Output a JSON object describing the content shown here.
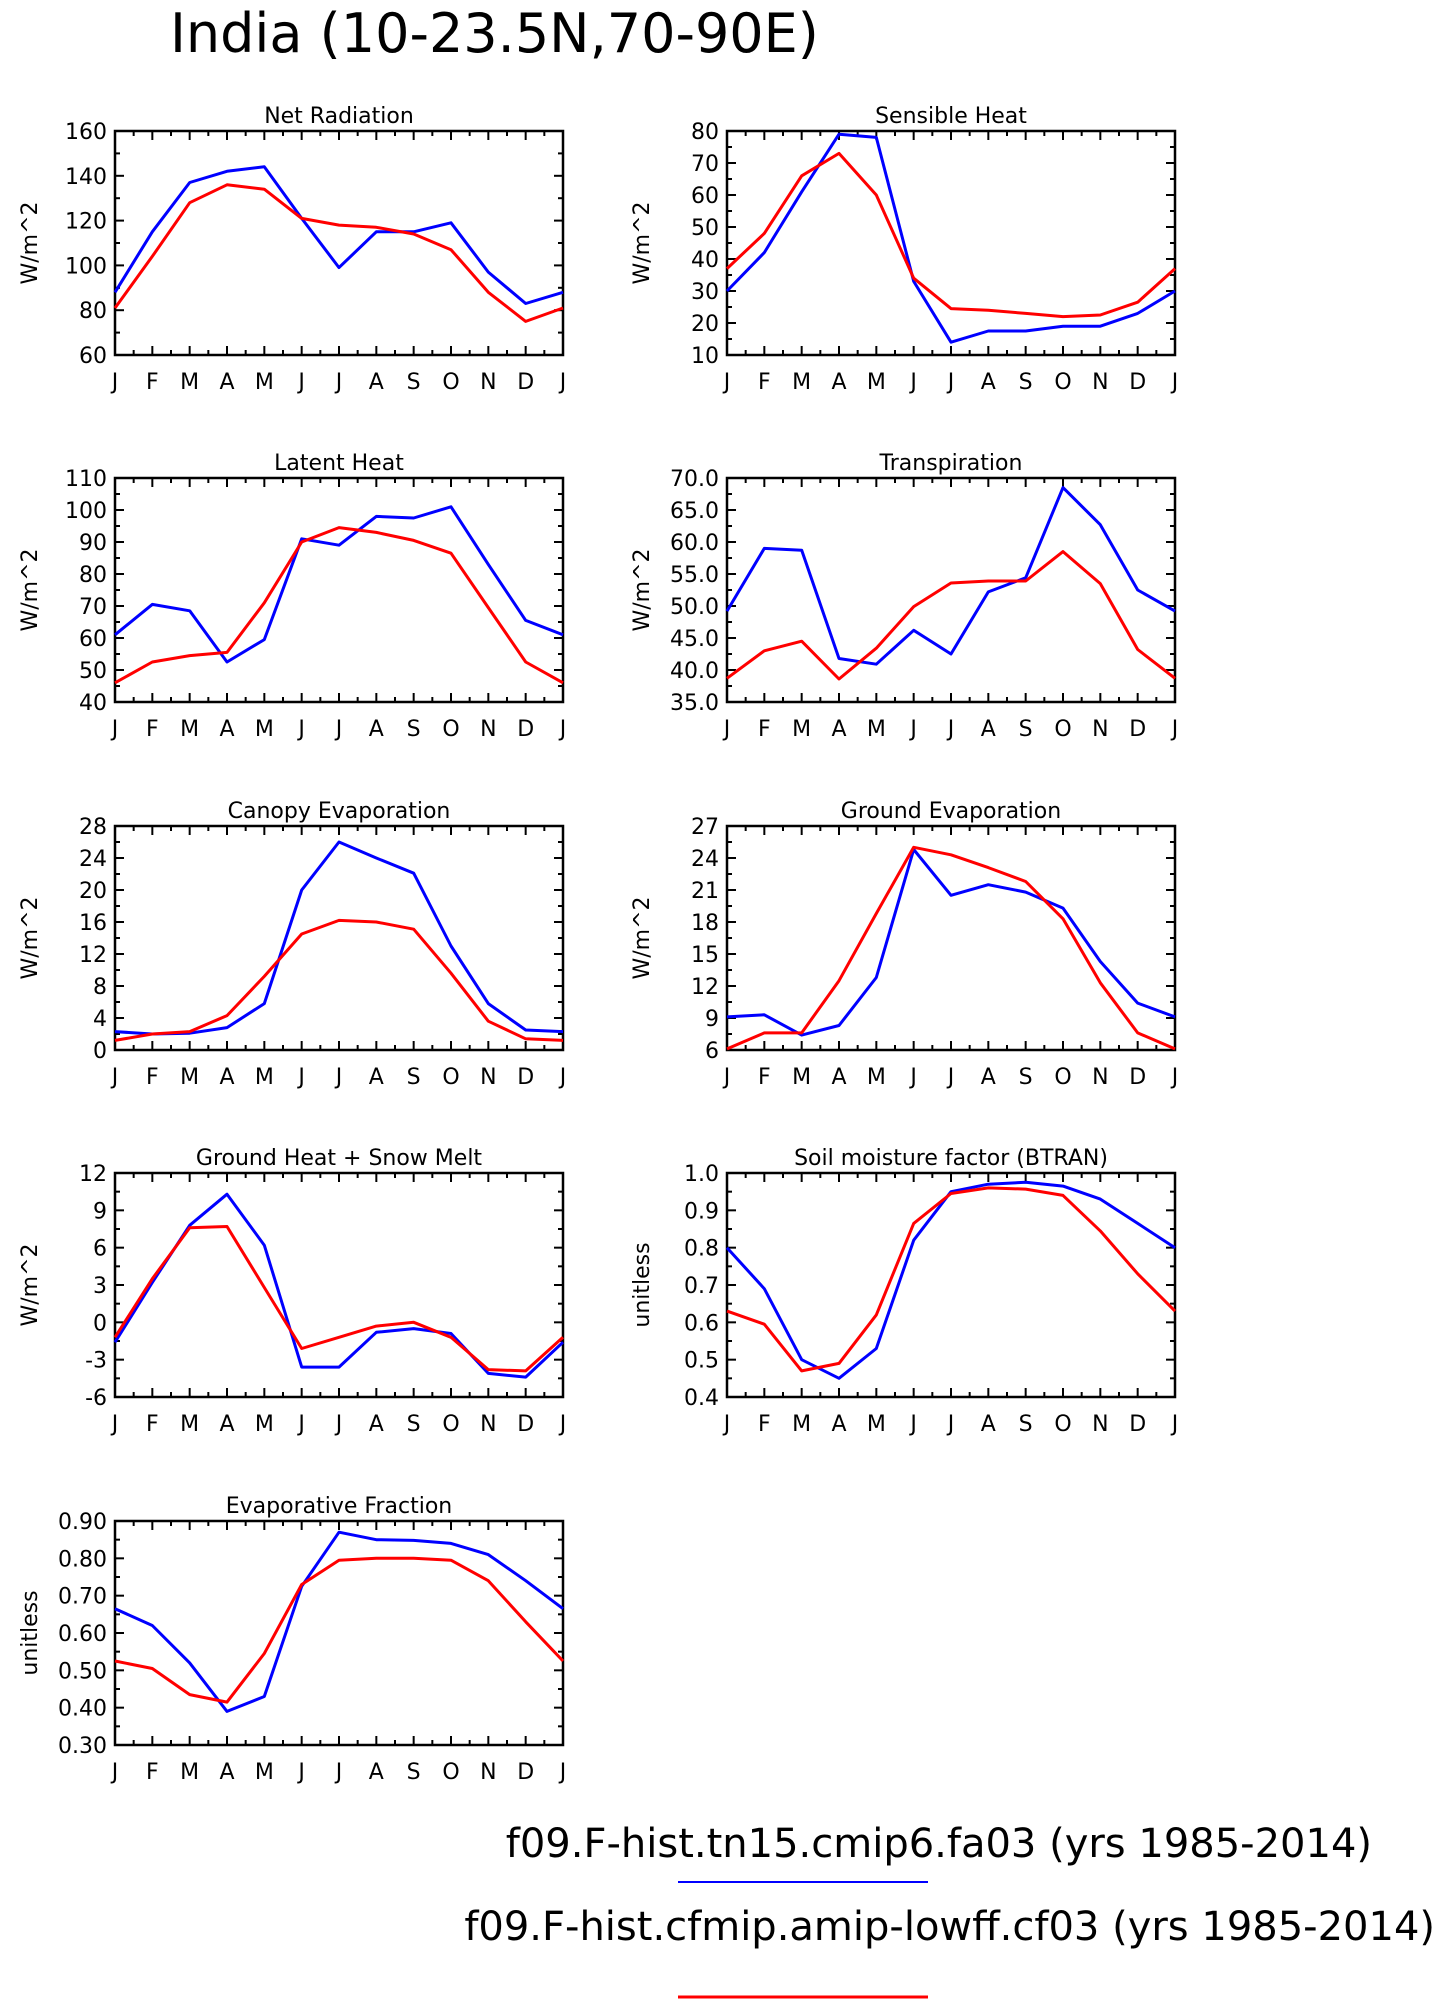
{
  "title": "India (10-23.5N,70-90E)",
  "colors": {
    "model_a": "#0000ff",
    "model_b": "#ff0000"
  },
  "legend": [
    {
      "label": "f09.F-hist.tn15.cmip6.fa03 (yrs 1985-2014)",
      "color": "#0000ff"
    },
    {
      "label": "f09.F-hist.cfmip.amip-lowff.cf03 (yrs 1985-2014)",
      "color": "#ff0000"
    }
  ],
  "chart_data": [
    {
      "type": "line",
      "title": "Net Radiation",
      "ylabel": "W/m^2",
      "categories": [
        "J",
        "F",
        "M",
        "A",
        "M",
        "J",
        "J",
        "A",
        "S",
        "O",
        "N",
        "D",
        "J"
      ],
      "ylim": [
        60,
        160
      ],
      "yticks": [
        "60",
        "80",
        "100",
        "120",
        "140",
        "160"
      ],
      "series": [
        {
          "color": "#0000ff",
          "values": [
            88,
            115,
            137,
            142,
            144,
            121,
            99,
            115,
            115,
            119,
            97,
            83,
            88
          ]
        },
        {
          "color": "#ff0000",
          "values": [
            81,
            104,
            128,
            136,
            134,
            121,
            118,
            117,
            114,
            107,
            88,
            75,
            81
          ]
        }
      ]
    },
    {
      "type": "line",
      "title": "Sensible Heat",
      "ylabel": "W/m^2",
      "categories": [
        "J",
        "F",
        "M",
        "A",
        "M",
        "J",
        "J",
        "A",
        "S",
        "O",
        "N",
        "D",
        "J"
      ],
      "ylim": [
        10,
        80
      ],
      "yticks": [
        "10",
        "20",
        "30",
        "40",
        "50",
        "60",
        "70",
        "80"
      ],
      "series": [
        {
          "color": "#0000ff",
          "values": [
            30,
            42,
            61,
            79,
            78,
            33,
            14,
            17.5,
            17.5,
            19,
            19,
            23,
            30
          ]
        },
        {
          "color": "#ff0000",
          "values": [
            37,
            48,
            66,
            73,
            60,
            34,
            24.5,
            24,
            23,
            22,
            22.5,
            26.5,
            37
          ]
        }
      ]
    },
    {
      "type": "line",
      "title": "Latent Heat",
      "ylabel": "W/m^2",
      "categories": [
        "J",
        "F",
        "M",
        "A",
        "M",
        "J",
        "J",
        "A",
        "S",
        "O",
        "N",
        "D",
        "J"
      ],
      "ylim": [
        40,
        110
      ],
      "yticks": [
        "40",
        "50",
        "60",
        "70",
        "80",
        "90",
        "100",
        "110"
      ],
      "series": [
        {
          "color": "#0000ff",
          "values": [
            61,
            70.5,
            68.5,
            52.5,
            59.5,
            91,
            89,
            98,
            97.5,
            101,
            83,
            65.5,
            61
          ]
        },
        {
          "color": "#ff0000",
          "values": [
            46,
            52.5,
            54.5,
            55.5,
            71,
            90,
            94.5,
            93,
            90.5,
            86.5,
            69.5,
            52.5,
            46
          ]
        }
      ]
    },
    {
      "type": "line",
      "title": "Transpiration",
      "ylabel": "W/m^2",
      "categories": [
        "J",
        "F",
        "M",
        "A",
        "M",
        "J",
        "J",
        "A",
        "S",
        "O",
        "N",
        "D",
        "J"
      ],
      "ylim": [
        35,
        70
      ],
      "yticks": [
        "35.0",
        "40.0",
        "45.0",
        "50.0",
        "55.0",
        "60.0",
        "65.0",
        "70.0"
      ],
      "series": [
        {
          "color": "#0000ff",
          "values": [
            49.2,
            59,
            58.7,
            41.8,
            40.9,
            46.2,
            42.5,
            52.2,
            54.4,
            68.5,
            62.7,
            52.5,
            49.2
          ]
        },
        {
          "color": "#ff0000",
          "values": [
            38.7,
            43,
            44.5,
            38.6,
            43.4,
            49.9,
            53.6,
            53.9,
            53.9,
            58.5,
            53.5,
            43.2,
            38.7
          ]
        }
      ]
    },
    {
      "type": "line",
      "title": "Canopy Evaporation",
      "ylabel": "W/m^2",
      "categories": [
        "J",
        "F",
        "M",
        "A",
        "M",
        "J",
        "J",
        "A",
        "S",
        "O",
        "N",
        "D",
        "J"
      ],
      "ylim": [
        0,
        28
      ],
      "yticks": [
        "0",
        "4",
        "8",
        "12",
        "16",
        "20",
        "24",
        "28"
      ],
      "series": [
        {
          "color": "#0000ff",
          "values": [
            2.3,
            2,
            2.1,
            2.8,
            5.8,
            20,
            26,
            24,
            22.1,
            13,
            5.8,
            2.5,
            2.3
          ]
        },
        {
          "color": "#ff0000",
          "values": [
            1.2,
            2,
            2.3,
            4.3,
            9.2,
            14.5,
            16.2,
            16,
            15.1,
            9.6,
            3.6,
            1.4,
            1.2
          ]
        }
      ]
    },
    {
      "type": "line",
      "title": "Ground Evaporation",
      "ylabel": "W/m^2",
      "categories": [
        "J",
        "F",
        "M",
        "A",
        "M",
        "J",
        "J",
        "A",
        "S",
        "O",
        "N",
        "D",
        "J"
      ],
      "ylim": [
        6,
        27
      ],
      "yticks": [
        "6",
        "9",
        "12",
        "15",
        "18",
        "21",
        "24",
        "27"
      ],
      "series": [
        {
          "color": "#0000ff",
          "values": [
            9.1,
            9.3,
            7.4,
            8.3,
            12.8,
            24.8,
            20.5,
            21.5,
            20.8,
            19.3,
            14.3,
            10.4,
            9.1
          ]
        },
        {
          "color": "#ff0000",
          "values": [
            6.1,
            7.6,
            7.6,
            12.5,
            18.8,
            25,
            24.3,
            23.1,
            21.8,
            18.3,
            12.3,
            7.6,
            6.1
          ]
        }
      ]
    },
    {
      "type": "line",
      "title": "Ground Heat + Snow Melt",
      "ylabel": "W/m^2",
      "categories": [
        "J",
        "F",
        "M",
        "A",
        "M",
        "J",
        "J",
        "A",
        "S",
        "O",
        "N",
        "D",
        "J"
      ],
      "ylim": [
        -6,
        12
      ],
      "yticks": [
        "-6",
        "-3",
        "0",
        "3",
        "6",
        "9",
        "12"
      ],
      "series": [
        {
          "color": "#0000ff",
          "values": [
            -1.6,
            3.2,
            7.8,
            10.3,
            6.2,
            -3.6,
            -3.6,
            -0.8,
            -0.5,
            -0.9,
            -4.1,
            -4.4,
            -1.6
          ]
        },
        {
          "color": "#ff0000",
          "values": [
            -1.2,
            3.5,
            7.6,
            7.7,
            2.8,
            -2.1,
            -1.2,
            -0.3,
            0,
            -1.2,
            -3.8,
            -3.9,
            -1.2
          ]
        }
      ]
    },
    {
      "type": "line",
      "title": "Soil moisture factor (BTRAN)",
      "ylabel": "unitless",
      "categories": [
        "J",
        "F",
        "M",
        "A",
        "M",
        "J",
        "J",
        "A",
        "S",
        "O",
        "N",
        "D",
        "J"
      ],
      "ylim": [
        0.4,
        1.0
      ],
      "yticks": [
        "0.4",
        "0.5",
        "0.6",
        "0.7",
        "0.8",
        "0.9",
        "1.0"
      ],
      "series": [
        {
          "color": "#0000ff",
          "values": [
            0.8,
            0.69,
            0.5,
            0.45,
            0.53,
            0.82,
            0.95,
            0.97,
            0.975,
            0.965,
            0.93,
            0.865,
            0.8
          ]
        },
        {
          "color": "#ff0000",
          "values": [
            0.63,
            0.595,
            0.47,
            0.49,
            0.62,
            0.865,
            0.945,
            0.96,
            0.957,
            0.94,
            0.845,
            0.73,
            0.63
          ]
        }
      ]
    },
    {
      "type": "line",
      "title": "Evaporative Fraction",
      "ylabel": "unitless",
      "categories": [
        "J",
        "F",
        "M",
        "A",
        "M",
        "J",
        "J",
        "A",
        "S",
        "O",
        "N",
        "D",
        "J"
      ],
      "ylim": [
        0.3,
        0.9
      ],
      "yticks": [
        "0.30",
        "0.40",
        "0.50",
        "0.60",
        "0.70",
        "0.80",
        "0.90"
      ],
      "series": [
        {
          "color": "#0000ff",
          "values": [
            0.665,
            0.62,
            0.52,
            0.39,
            0.43,
            0.725,
            0.87,
            0.85,
            0.848,
            0.84,
            0.81,
            0.74,
            0.665
          ]
        },
        {
          "color": "#ff0000",
          "values": [
            0.525,
            0.505,
            0.435,
            0.415,
            0.545,
            0.73,
            0.795,
            0.8,
            0.8,
            0.795,
            0.74,
            0.63,
            0.525
          ]
        }
      ]
    }
  ]
}
